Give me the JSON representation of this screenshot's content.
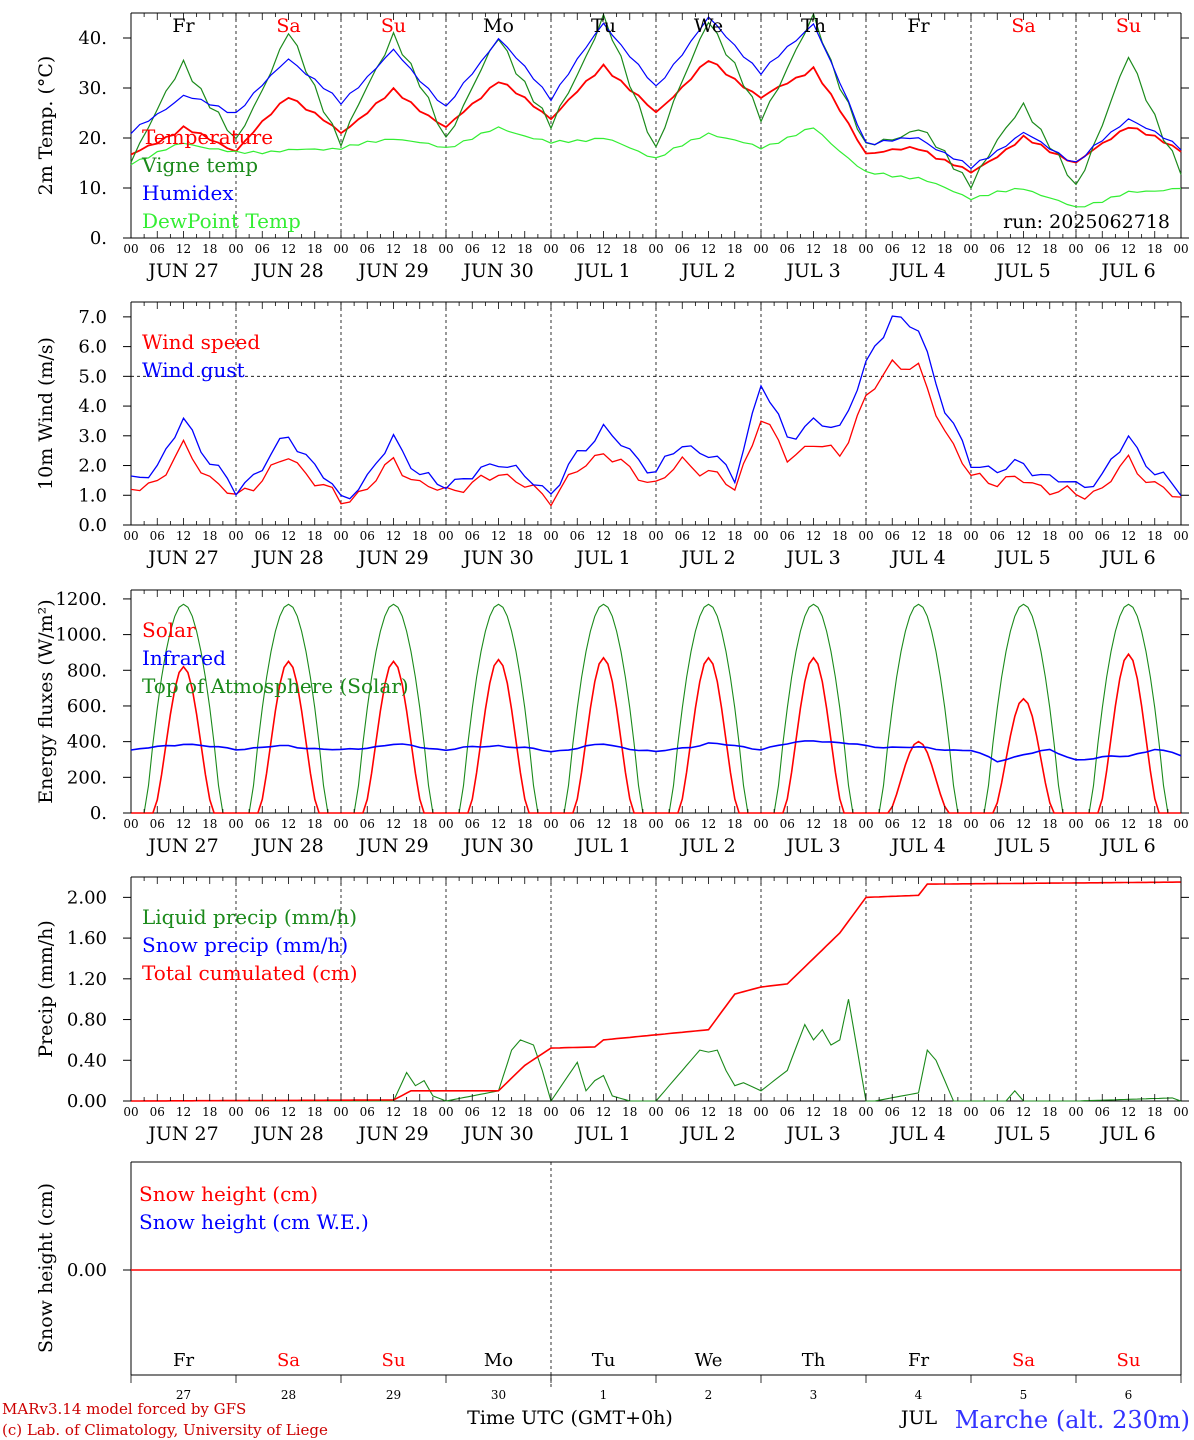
{
  "chart_data": [
    {
      "type": "line",
      "ylabel": "2m Temp. (°C)",
      "ylim": [
        0,
        45
      ],
      "yticks": [
        0,
        10,
        20,
        30,
        40
      ],
      "ytick_labels": [
        "0.",
        "10.",
        "20.",
        "30.",
        "40."
      ],
      "run_label": "run: 2025062718",
      "legend": [
        "Temperature",
        "Vigne temp",
        "Humidex",
        "DewPoint Temp"
      ],
      "x_hours": [
        0,
        12,
        24,
        36,
        48,
        60,
        72,
        84,
        96,
        108,
        120,
        132,
        144,
        156,
        168,
        180,
        192,
        204,
        216,
        228,
        240
      ],
      "series": [
        {
          "name": "Temperature",
          "color": "#ff0000",
          "values": [
            16.5,
            22,
            17.5,
            28.5,
            21,
            29.5,
            22,
            31.5,
            24,
            34.5,
            25,
            35.5,
            28,
            34,
            17,
            18,
            13,
            20,
            15,
            22.5,
            17.5
          ]
        },
        {
          "name": "Vigne temp",
          "color": "#1b8a1b",
          "values": [
            16,
            35,
            19,
            41,
            19,
            41,
            20,
            40,
            22,
            44,
            18,
            44,
            24,
            44,
            18,
            22,
            11,
            27,
            10,
            36,
            13
          ]
        },
        {
          "name": "Humidex",
          "color": "#0000ff",
          "values": [
            21,
            28.5,
            25,
            36,
            27,
            37.5,
            26,
            40,
            28,
            43,
            30,
            44,
            33,
            43,
            19,
            20,
            14,
            21,
            15,
            24,
            18
          ]
        },
        {
          "name": "DewPoint Temp",
          "color": "#33ee33",
          "values": [
            15,
            19,
            17,
            17.5,
            18,
            20,
            18,
            22,
            19,
            20,
            16,
            21,
            18,
            22,
            13,
            12,
            8,
            10,
            6,
            9,
            10
          ]
        }
      ]
    },
    {
      "type": "line",
      "ylabel": "10m Wind (m/s)",
      "ylim": [
        0,
        7.5
      ],
      "yticks": [
        0,
        1,
        2,
        3,
        4,
        5,
        6,
        7
      ],
      "ytick_labels": [
        "0.0",
        "1.0",
        "2.0",
        "3.0",
        "4.0",
        "5.0",
        "6.0",
        "7.0"
      ],
      "reference_line": 5,
      "legend": [
        "Wind speed",
        "Wind gust"
      ],
      "x_hours": [
        0,
        6,
        12,
        18,
        24,
        30,
        36,
        42,
        48,
        54,
        60,
        66,
        72,
        78,
        84,
        90,
        96,
        102,
        108,
        114,
        120,
        126,
        132,
        138,
        144,
        150,
        156,
        162,
        168,
        174,
        180,
        186,
        192,
        198,
        204,
        210,
        216,
        222,
        228,
        234,
        240
      ],
      "series": [
        {
          "name": "Wind speed",
          "color": "#ff0000",
          "values": [
            1.1,
            1.5,
            2.6,
            1.6,
            0.9,
            1.6,
            2.3,
            1.5,
            0.8,
            1.2,
            2.2,
            1.3,
            1.2,
            1.3,
            1.8,
            1.3,
            0.9,
            1.8,
            2.5,
            1.8,
            1.4,
            2.1,
            1.8,
            1.2,
            3.6,
            2.3,
            2.7,
            2.4,
            4.2,
            5.5,
            5.2,
            3.2,
            1.6,
            1.5,
            1.5,
            1.2,
            1.0,
            1.2,
            2.2,
            1.3,
            0.9
          ]
        },
        {
          "name": "Wind gust",
          "color": "#0000ff",
          "values": [
            1.4,
            2.0,
            3.5,
            2.2,
            1.1,
            2.0,
            3.0,
            2.0,
            0.9,
            1.5,
            3.0,
            1.6,
            1.4,
            1.6,
            2.2,
            1.6,
            1.1,
            2.3,
            3.3,
            2.4,
            1.8,
            2.7,
            2.4,
            1.6,
            4.7,
            3.0,
            3.4,
            3.3,
            5.3,
            7.1,
            6.5,
            4.0,
            2.0,
            1.9,
            2.0,
            1.6,
            1.3,
            1.6,
            3.0,
            1.7,
            1.2
          ]
        }
      ]
    },
    {
      "type": "line",
      "ylabel": "Energy fluxes (W/m²)",
      "ylim": [
        0,
        1250
      ],
      "yticks": [
        0,
        200,
        400,
        600,
        800,
        1000,
        1200
      ],
      "ytick_labels": [
        "0.",
        "200.",
        "400.",
        "600.",
        "800.",
        "1000.",
        "1200."
      ],
      "legend": [
        "Solar",
        "Infrared",
        "Top of Atmosphere (Solar)"
      ],
      "toa_peak": 1170,
      "solar_day_peaks": [
        820,
        850,
        850,
        860,
        870,
        870,
        870,
        400,
        640,
        890
      ],
      "series": [
        {
          "name": "Infrared",
          "color": "#0000ff",
          "x_hours": [
            0,
            6,
            12,
            18,
            24,
            36,
            48,
            60,
            72,
            84,
            96,
            108,
            120,
            132,
            144,
            156,
            168,
            180,
            192,
            198,
            204,
            210,
            216,
            228,
            234,
            240
          ],
          "values": [
            350,
            370,
            390,
            370,
            360,
            375,
            350,
            385,
            355,
            380,
            345,
            385,
            340,
            390,
            360,
            410,
            375,
            365,
            350,
            290,
            330,
            350,
            300,
            320,
            360,
            320
          ]
        },
        {
          "name": "Solar",
          "color": "#ff0000",
          "values": []
        },
        {
          "name": "Top of Atmosphere (Solar)",
          "color": "#1b8a1b",
          "values": []
        }
      ]
    },
    {
      "type": "line",
      "ylabel": "Precip (mm/h)",
      "ylim": [
        0,
        2.2
      ],
      "yticks": [
        0,
        0.4,
        0.8,
        1.2,
        1.6,
        2.0
      ],
      "ytick_labels": [
        "0.00",
        "0.40",
        "0.80",
        "1.20",
        "1.60",
        "2.00"
      ],
      "legend": [
        "Liquid precip (mm/h)",
        "Snow precip (mm/h)",
        "Total cumulated (cm)"
      ],
      "series": [
        {
          "name": "Liquid precip (mm/h)",
          "color": "#1b8a1b",
          "x_hours": [
            0,
            60,
            63,
            65,
            67,
            69,
            72,
            84,
            87,
            89,
            92,
            94,
            96,
            102,
            104,
            106,
            108,
            110,
            114,
            118,
            120,
            130,
            132,
            134,
            136,
            138,
            140,
            144,
            150,
            154,
            156,
            158,
            160,
            162,
            164,
            166,
            168,
            170,
            180,
            182,
            184,
            186,
            188,
            200,
            202,
            204,
            216,
            238,
            240
          ],
          "values": [
            0,
            0,
            0.28,
            0.15,
            0.2,
            0.05,
            0,
            0.1,
            0.5,
            0.6,
            0.55,
            0.3,
            0,
            0.38,
            0.1,
            0.2,
            0.25,
            0.05,
            0,
            0,
            0,
            0.5,
            0.48,
            0.5,
            0.3,
            0.15,
            0.18,
            0.1,
            0.3,
            0.75,
            0.6,
            0.7,
            0.55,
            0.6,
            1.0,
            0.5,
            0,
            0,
            0.08,
            0.5,
            0.4,
            0.2,
            0,
            0,
            0.1,
            0,
            0,
            0.03,
            0
          ]
        },
        {
          "name": "Snow precip (mm/h)",
          "color": "#0000ff",
          "values": []
        },
        {
          "name": "Total cumulated (cm)",
          "color": "#ff0000",
          "x_hours": [
            0,
            60,
            64,
            84,
            90,
            96,
            106,
            108,
            132,
            138,
            144,
            150,
            162,
            168,
            180,
            182,
            240
          ],
          "values": [
            0,
            0.01,
            0.1,
            0.1,
            0.35,
            0.52,
            0.53,
            0.6,
            0.7,
            1.05,
            1.12,
            1.15,
            1.65,
            2.0,
            2.02,
            2.13,
            2.15
          ]
        }
      ]
    },
    {
      "type": "line",
      "ylabel": "Snow height (cm)",
      "yticks": [
        0
      ],
      "ytick_labels": [
        "0.00"
      ],
      "legend": [
        "Snow height (cm)",
        "Snow height (cm W.E.)"
      ],
      "series": [
        {
          "name": "Snow height (cm)",
          "color": "#ff0000",
          "values": [
            0,
            0
          ]
        },
        {
          "name": "Snow height (cm W.E.)",
          "color": "#0000ff",
          "values": []
        }
      ],
      "xlabel": "Time UTC (GMT+0h)"
    }
  ],
  "axes": {
    "hour_ticks": [
      "00",
      "06",
      "12",
      "18"
    ],
    "last_hour_tick": "00",
    "date_labels": [
      "JUN 27",
      "JUN 28",
      "JUN 29",
      "JUN 30",
      "JUL  1",
      "JUL  2",
      "JUL  3",
      "JUL  4",
      "JUL  5",
      "JUL  6"
    ],
    "weekday_labels": [
      "Fr",
      "Sa",
      "Su",
      "Mo",
      "Tu",
      "We",
      "Th",
      "Fr",
      "Sa",
      "Su"
    ],
    "weekday_colors": [
      "#000000",
      "#ff0000",
      "#ff0000",
      "#000000",
      "#000000",
      "#000000",
      "#000000",
      "#000000",
      "#ff0000",
      "#ff0000"
    ],
    "day_numbers": [
      "27",
      "28",
      "29",
      "30",
      "1",
      "2",
      "3",
      "4",
      "5",
      "6"
    ]
  },
  "footer": {
    "credit_line1": "MARv3.14 model forced by GFS",
    "credit_line2": "(c) Lab. of Climatology, University of Liege",
    "station": "Marche (alt. 230m)",
    "month_overlap": "JUL"
  },
  "colors": {
    "temperature": "#ff0000",
    "vigne": "#1b8a1b",
    "humidex": "#0000ff",
    "dewpoint": "#33ee33",
    "credit": "#cc0000",
    "station": "#3333ff"
  }
}
